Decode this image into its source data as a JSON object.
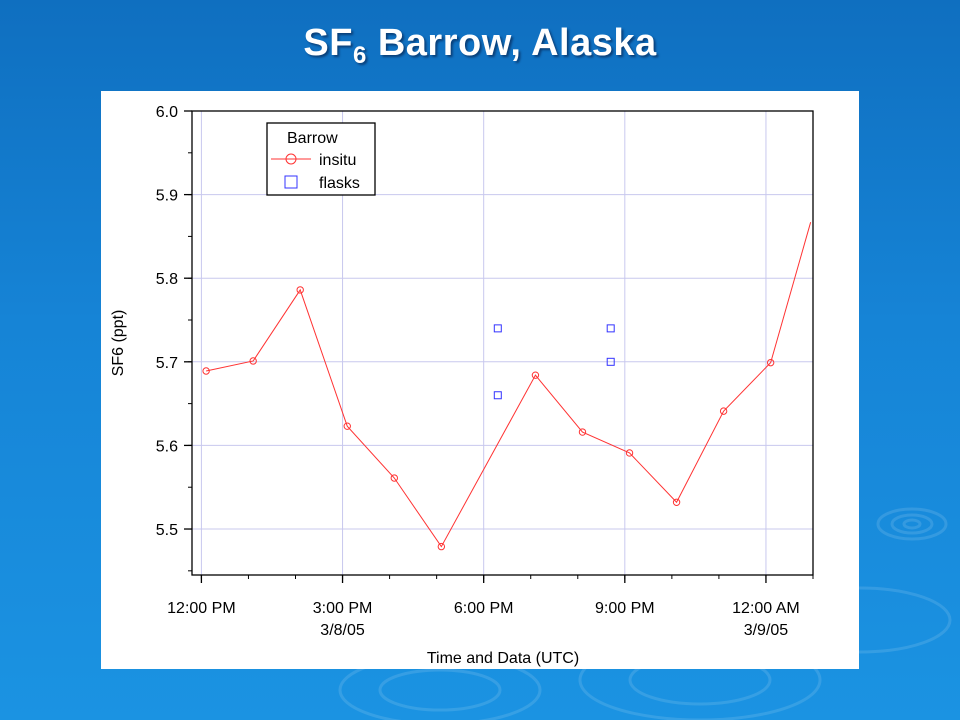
{
  "slide": {
    "title_main": "SF",
    "title_sub": "6",
    "title_rest": " Barrow, Alaska",
    "background_color": "#1684d6"
  },
  "chart_data": {
    "type": "line",
    "title": "",
    "xlabel": "Time and Data (UTC)",
    "ylabel": "SF6 (ppt)",
    "ylim": [
      5.445,
      6.0
    ],
    "xlim_hours": [
      11.8,
      25.0
    ],
    "y_ticks": [
      5.5,
      5.6,
      5.7,
      5.8,
      5.9,
      6.0
    ],
    "y_tick_labels": [
      "5.5",
      "5.6",
      "5.7",
      "5.8",
      "5.9",
      "6.0"
    ],
    "x_ticks_hours": [
      12,
      15,
      18,
      21,
      24
    ],
    "x_tick_labels": [
      {
        "line1": "12:00 PM",
        "line2": ""
      },
      {
        "line1": "3:00 PM",
        "line2": "3/8/05"
      },
      {
        "line1": "6:00 PM",
        "line2": ""
      },
      {
        "line1": "9:00 PM",
        "line2": ""
      },
      {
        "line1": "12:00 AM",
        "line2": "3/9/05"
      }
    ],
    "grid": true,
    "legend": {
      "title": "Barrow",
      "placement": "top-left"
    },
    "series": [
      {
        "name": "insitu",
        "color": "#ff3333",
        "marker": "circle",
        "line": true,
        "points": [
          [
            12.1,
            5.689
          ],
          [
            13.1,
            5.701
          ],
          [
            14.1,
            5.786
          ],
          [
            15.1,
            5.623
          ],
          [
            16.1,
            5.561
          ],
          [
            17.1,
            5.479
          ],
          [
            19.1,
            5.684
          ],
          [
            20.1,
            5.616
          ],
          [
            21.1,
            5.591
          ],
          [
            22.1,
            5.532
          ],
          [
            23.1,
            5.641
          ],
          [
            24.1,
            5.699
          ]
        ],
        "end_point": [
          24.95,
          5.867
        ]
      },
      {
        "name": "flasks",
        "color": "#3333ff",
        "marker": "square",
        "line": false,
        "points": [
          [
            18.3,
            5.74
          ],
          [
            18.3,
            5.66
          ],
          [
            20.7,
            5.74
          ],
          [
            20.7,
            5.7
          ]
        ]
      }
    ]
  }
}
